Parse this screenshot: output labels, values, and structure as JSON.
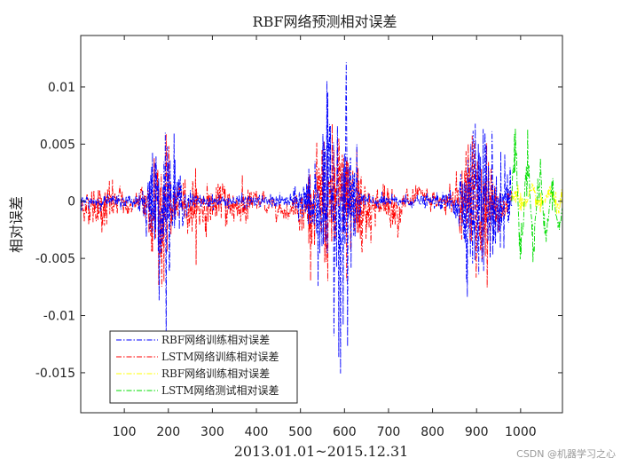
{
  "chart_data": {
    "type": "line",
    "title": "RBF网络预测相对误差",
    "xlabel": "2013.01.01~2015.12.31",
    "ylabel": "相对误差",
    "xlim": [
      1,
      1095
    ],
    "ylim": [
      -0.0185,
      0.0145
    ],
    "x_ticks": [
      100,
      200,
      300,
      400,
      500,
      600,
      700,
      800,
      900,
      1000
    ],
    "y_ticks": [
      -0.015,
      -0.01,
      -0.005,
      0,
      0.005,
      0.01
    ],
    "y_tick_labels": [
      "-0.015",
      "-0.01",
      "-0.005",
      "0",
      "0.005",
      "0.01"
    ],
    "legend_position": "bottom-left",
    "grid": false,
    "series": [
      {
        "name": "RBF网络训练相对误差",
        "color": "#0000ff",
        "dash": "dash-dot",
        "x_range": [
          1,
          980
        ]
      },
      {
        "name": "LSTM网络训练相对误差",
        "color": "#ff0000",
        "dash": "dash-dot",
        "x_range": [
          1,
          980
        ]
      },
      {
        "name": "RBF网络训练相对误差",
        "color": "#ffff00",
        "dash": "dash-dot",
        "x_range": [
          980,
          1095
        ]
      },
      {
        "name": "LSTM网络测试相对误差",
        "color": "#00dd00",
        "dash": "dash-dot",
        "x_range": [
          980,
          1095
        ]
      }
    ]
  },
  "watermark": "CSDN @机器学习之心"
}
